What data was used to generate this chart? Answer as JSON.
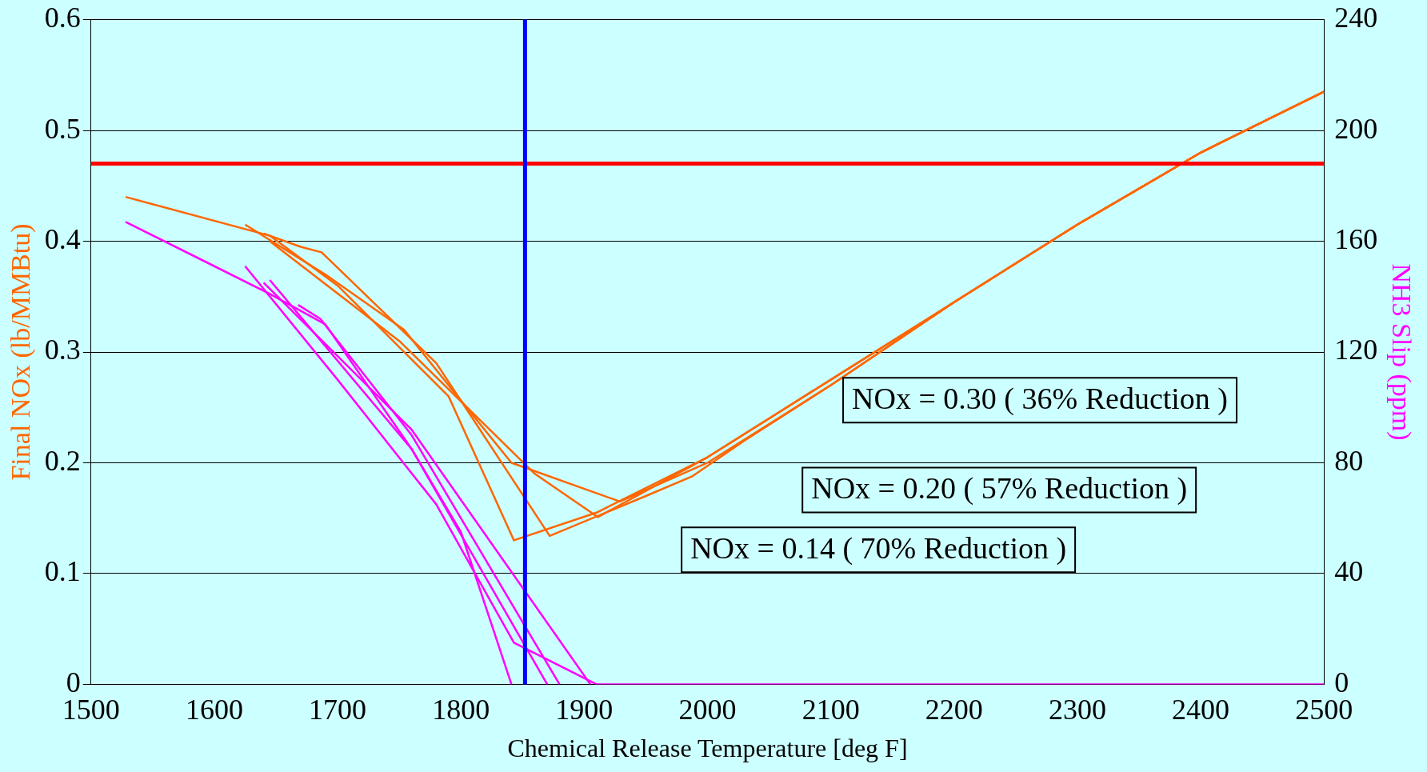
{
  "chart_data": {
    "type": "line",
    "xlabel": "Chemical Release Temperature [deg F]",
    "ylabel": "Final NOx (lb/MMBtu)",
    "y2label": "NH3 Slip (ppm)",
    "xlim": [
      1500,
      2500
    ],
    "xticks": [
      1500,
      1600,
      1700,
      1800,
      1900,
      2000,
      2100,
      2200,
      2300,
      2400,
      2500
    ],
    "ylim": [
      0,
      0.6
    ],
    "yticks": [
      0,
      0.1,
      0.2,
      0.3,
      0.4,
      0.5,
      0.6
    ],
    "y2lim": [
      0,
      240
    ],
    "y2ticks": [
      0,
      40,
      80,
      120,
      160,
      200,
      240
    ],
    "grid": "y",
    "legend": false,
    "marker": "none",
    "line_style": "solid",
    "series": [
      {
        "color": "#ff6600",
        "x": [
          1528,
          1645,
          1700,
          1790,
          1843,
          1910,
          2000,
          2100,
          2200,
          2300,
          2400,
          2500
        ],
        "values": [
          0.44,
          0.405,
          0.36,
          0.26,
          0.13,
          0.155,
          0.205,
          0.275,
          0.345,
          0.415,
          0.48,
          0.535
        ]
      },
      {
        "color": "#ff6600",
        "x": [
          1625,
          1690,
          1754,
          1790,
          1841,
          1929,
          2000,
          2100,
          2200,
          2300,
          2400,
          2500
        ],
        "values": [
          0.415,
          0.37,
          0.32,
          0.27,
          0.2,
          0.165,
          0.2,
          0.27,
          0.345,
          0.415,
          0.48,
          0.535
        ]
      },
      {
        "color": "#ff6600",
        "x": [
          1640,
          1670,
          1687,
          1780,
          1872,
          1950,
          1988,
          2030,
          2100,
          2200,
          2300,
          2400,
          2500
        ],
        "values": [
          0.407,
          0.395,
          0.39,
          0.29,
          0.134,
          0.17,
          0.188,
          0.22,
          0.27,
          0.345,
          0.415,
          0.48,
          0.535
        ]
      },
      {
        "color": "#ff6600",
        "x": [
          1645,
          1750,
          1860,
          1911,
          2000,
          2100,
          2200,
          2300,
          2400,
          2500
        ],
        "values": [
          0.4,
          0.31,
          0.19,
          0.151,
          0.205,
          0.275,
          0.345,
          0.415,
          0.48,
          0.535
        ]
      },
      {
        "color": "#ff00ff",
        "axis": "y2",
        "x": [
          1528,
          1645,
          1690,
          1760,
          1800,
          1841
        ],
        "values": [
          167,
          141,
          130,
          85,
          55,
          0
        ]
      },
      {
        "color": "#ff00ff",
        "axis": "y2",
        "x": [
          1625,
          1700,
          1780,
          1843,
          1910,
          1933,
          2500
        ],
        "values": [
          151,
          110,
          65,
          15,
          0,
          0,
          0
        ]
      },
      {
        "color": "#ff00ff",
        "axis": "y2",
        "x": [
          1645,
          1760,
          1870
        ],
        "values": [
          146,
          85,
          0
        ]
      },
      {
        "color": "#ff00ff",
        "axis": "y2",
        "x": [
          1668,
          1686,
          1760,
          1880
        ],
        "values": [
          137,
          132,
          90,
          0
        ]
      },
      {
        "color": "#ff00ff",
        "axis": "y2",
        "x": [
          1640,
          1760,
          1905
        ],
        "values": [
          145,
          92,
          0
        ]
      }
    ],
    "ref_lines": [
      {
        "axis": "y",
        "value": 0.47,
        "color": "#ff0000"
      },
      {
        "axis": "x",
        "value": 1852,
        "color": "#0000ff"
      }
    ],
    "annotations": [
      "NOx = 0.30 ( 36% Reduction )",
      "NOx = 0.20 ( 57% Reduction )",
      "NOx = 0.14 ( 70% Reduction )"
    ]
  }
}
